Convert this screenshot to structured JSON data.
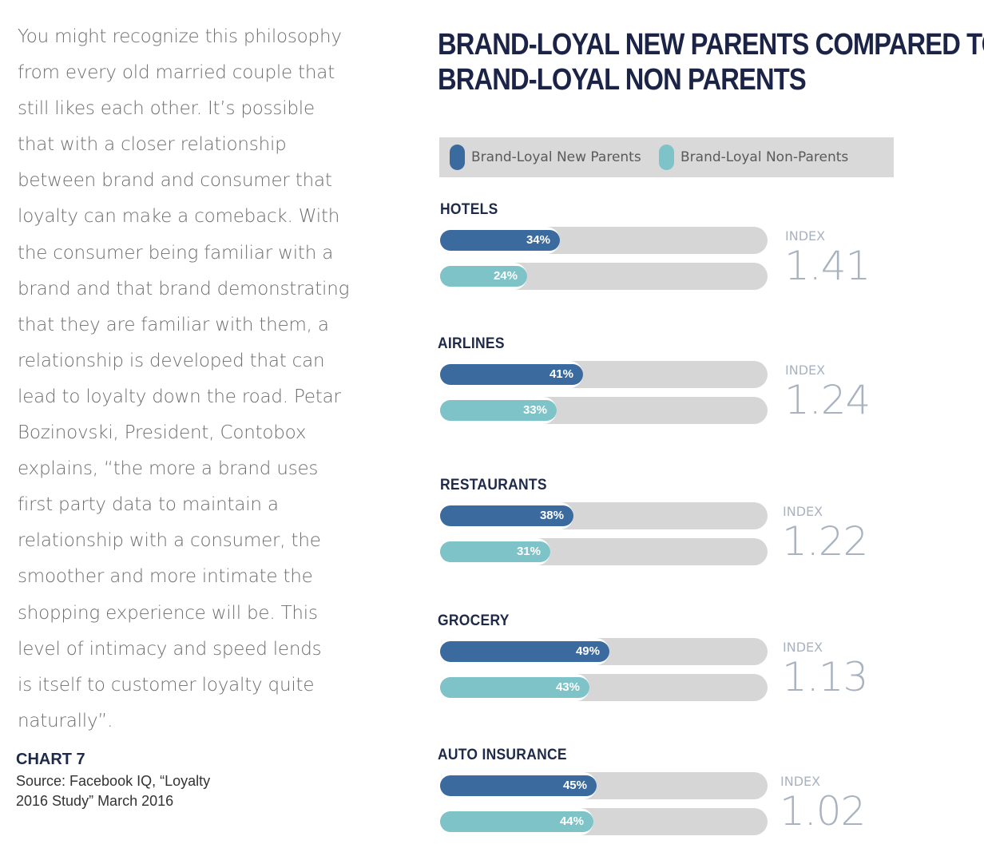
{
  "body_text": {
    "lines": [
      "You might recognize this philosophy",
      "from every old married couple that",
      "still likes each other. It’s possible",
      "that with a closer relationship",
      "between brand and consumer that",
      "loyalty can make a comeback. With",
      "the consumer being familiar with a",
      "brand and that brand demonstrating",
      "that they are familiar with them, a",
      "relationship is developed that can",
      "lead to loyalty down the road. Petar",
      "Bozinovski, President, Contobox",
      "explains, “the more a brand uses",
      "first party data to maintain a",
      "relationship with a consumer,  the",
      "smoother and more intimate the",
      "shopping experience will be. This",
      "level of intimacy and speed lends",
      "is itself to customer loyalty quite",
      "naturally”."
    ]
  },
  "caption": {
    "chart_label": "CHART 7",
    "source_lines": [
      "Source: Facebook IQ, “Loyalty",
      "2016 Study” March 2016"
    ]
  },
  "colors": {
    "new_parents": "#3b6b9e",
    "non_parents": "#7ec3c8",
    "track": "#d6d6d7",
    "title": "#1b2447",
    "index": "#a9b3bf"
  },
  "chart_data": {
    "type": "bar",
    "orientation": "horizontal",
    "title_lines": [
      "BRAND-LOYAL NEW PARENTS COMPARED TO",
      "BRAND-LOYAL NON PARENTS"
    ],
    "legend": [
      {
        "name": "Brand-Loyal New Parents",
        "color": "#3b6b9e"
      },
      {
        "name": "Brand-Loyal Non-Parents",
        "color": "#7ec3c8"
      }
    ],
    "value_unit": "%",
    "xlim": [
      0,
      100
    ],
    "index_label": "INDEX",
    "categories": [
      "HOTELS",
      "AIRLINES",
      "RESTAURANTS",
      "GROCERY",
      "AUTO INSURANCE"
    ],
    "series": [
      {
        "name": "Brand-Loyal New Parents",
        "values": [
          34,
          41,
          38,
          49,
          45
        ]
      },
      {
        "name": "Brand-Loyal Non-Parents",
        "values": [
          24,
          33,
          31,
          43,
          44
        ]
      }
    ],
    "index_values": [
      "1.41",
      "1.24",
      "1.22",
      "1.13",
      "1.02"
    ]
  }
}
